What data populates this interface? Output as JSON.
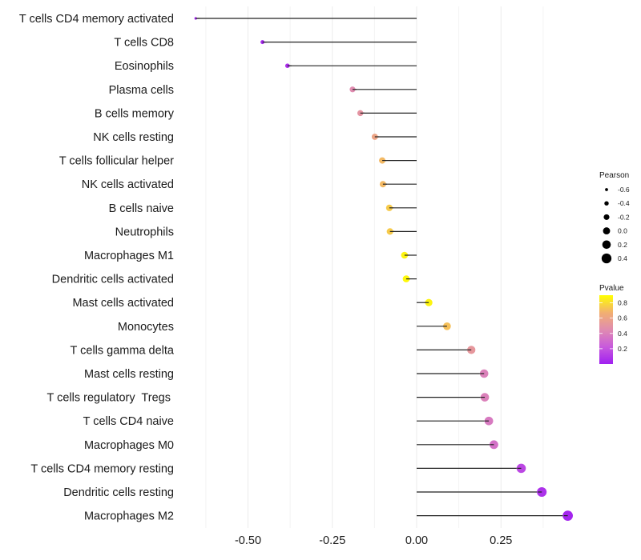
{
  "chart_data": {
    "type": "lollipop",
    "title": "",
    "xlabel": "",
    "ylabel": "",
    "xlim": [
      -0.665,
      0.465
    ],
    "x_ticks": [
      -0.5,
      -0.25,
      0.0,
      0.25
    ],
    "x_tick_labels": [
      "-0.50",
      "-0.25",
      "0.00",
      "0.25"
    ],
    "x_minor_gridlines": [
      -0.625,
      -0.375,
      -0.125,
      0.125,
      0.375
    ],
    "grid": true,
    "baseline": 0.0,
    "categories": [
      "T cells CD4 memory activated",
      "T cells CD8",
      "Eosinophils",
      "Plasma cells",
      "B cells memory",
      "NK cells resting",
      "T cells follicular helper",
      "NK cells activated",
      "B cells naive",
      "Neutrophils",
      "Macrophages M1",
      "Dendritic cells activated",
      "Mast cells activated",
      "Monocytes",
      "T cells gamma delta",
      "Mast cells resting",
      "T cells regulatory  Tregs ",
      "T cells CD4 naive",
      "Macrophages M0",
      "T cells CD4 memory resting",
      "Dendritic cells resting",
      "Macrophages M2"
    ],
    "series": [
      {
        "name": "Pearson",
        "values": [
          -0.655,
          -0.457,
          -0.383,
          -0.19,
          -0.167,
          -0.124,
          -0.102,
          -0.1,
          -0.081,
          -0.079,
          -0.036,
          -0.031,
          0.036,
          0.09,
          0.162,
          0.2,
          0.202,
          0.214,
          0.229,
          0.31,
          0.371,
          0.448
        ]
      },
      {
        "name": "Pvalue",
        "values": [
          0.01,
          0.03,
          0.06,
          0.45,
          0.5,
          0.6,
          0.7,
          0.7,
          0.75,
          0.75,
          0.87,
          0.88,
          0.87,
          0.72,
          0.52,
          0.4,
          0.4,
          0.37,
          0.33,
          0.15,
          0.07,
          0.02
        ]
      }
    ],
    "legends": {
      "size": {
        "title": "Pearson",
        "position": "right",
        "breaks": [
          -0.6,
          -0.4,
          -0.2,
          0.0,
          0.2,
          0.4
        ],
        "labels": [
          "-0.6",
          "-0.4",
          "-0.2",
          "0.0",
          "0.2",
          "0.4"
        ]
      },
      "color": {
        "title": "Pvalue",
        "position": "right",
        "range": [
          0.0,
          0.9
        ],
        "breaks": [
          0.8,
          0.6,
          0.4,
          0.2
        ],
        "labels": [
          "0.8",
          "0.6",
          "0.4",
          "0.2"
        ],
        "low_color": "#A020F0",
        "mid_color": "#E8A0A0",
        "high_color": "#FFFF00"
      }
    }
  }
}
